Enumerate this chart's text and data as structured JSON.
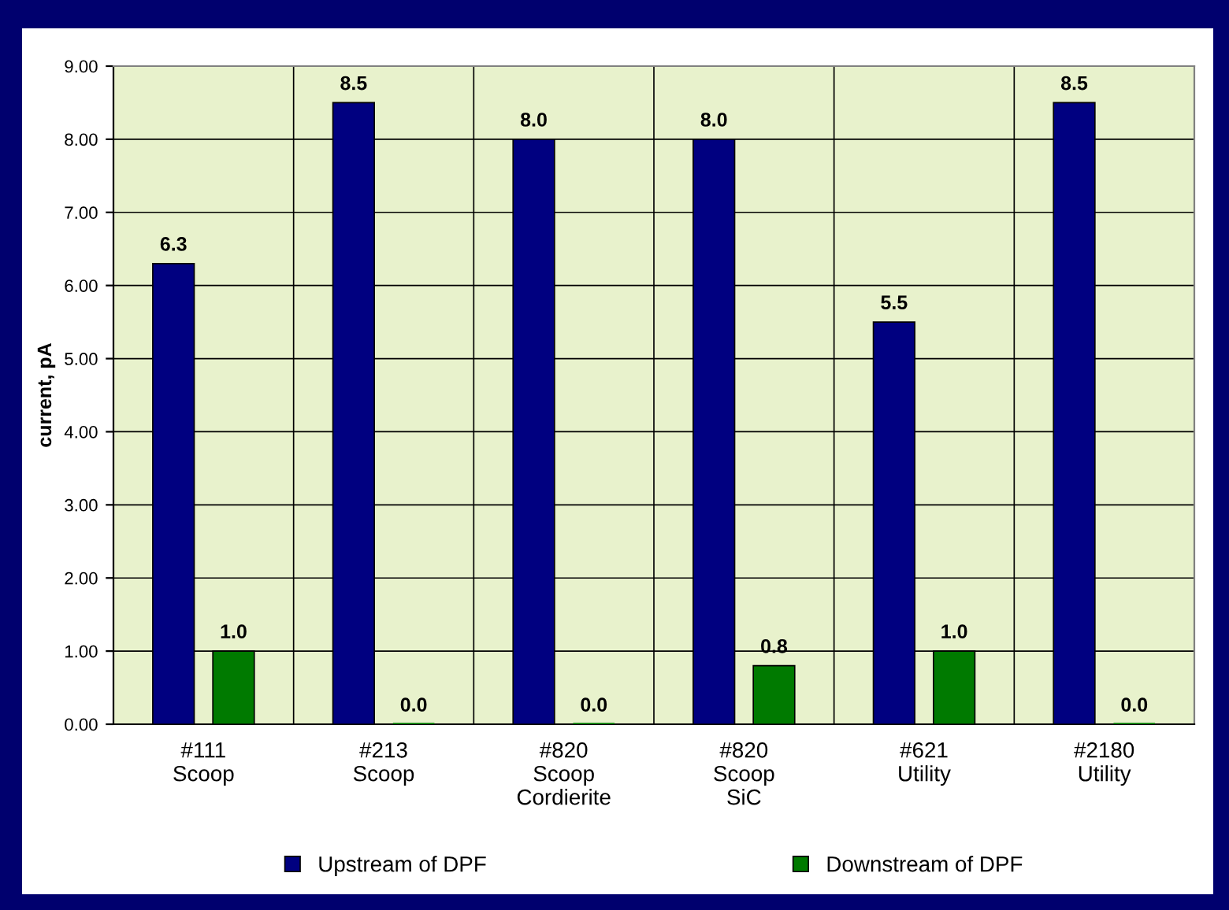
{
  "chart_data": {
    "type": "bar",
    "ylabel": "current, pA",
    "categories": [
      "#111\nScoop",
      "#213\nScoop",
      "#820\nScoop\nCordierite",
      "#820\nScoop\nSiC",
      "#621\nUtility",
      "#2180\nUtility"
    ],
    "series": [
      {
        "name": "Upstream of DPF",
        "color": "#000080",
        "values": [
          6.3,
          8.5,
          8.0,
          8.0,
          5.5,
          8.5
        ],
        "value_labels": [
          "6.3",
          "8.5",
          "8.0",
          "8.0",
          "5.5",
          "8.5"
        ]
      },
      {
        "name": "Downstream of DPF",
        "color": "#007a00",
        "values": [
          1.0,
          0.0,
          0.0,
          0.8,
          1.0,
          0.0
        ],
        "value_labels": [
          "1.0",
          "0.0",
          "0.0",
          "0.8",
          "1.0",
          "0.0"
        ]
      }
    ],
    "ylim": [
      0,
      9
    ],
    "yticks": [
      {
        "value": 0,
        "label": "0.00"
      },
      {
        "value": 1,
        "label": "1.00"
      },
      {
        "value": 2,
        "label": "2.00"
      },
      {
        "value": 3,
        "label": "3.00"
      },
      {
        "value": 4,
        "label": "4.00"
      },
      {
        "value": 5,
        "label": "5.00"
      },
      {
        "value": 6,
        "label": "6.00"
      },
      {
        "value": 7,
        "label": "7.00"
      },
      {
        "value": 8,
        "label": "8.00"
      },
      {
        "value": 9,
        "label": "9.00"
      }
    ],
    "grid": true,
    "legend": "bottom"
  }
}
